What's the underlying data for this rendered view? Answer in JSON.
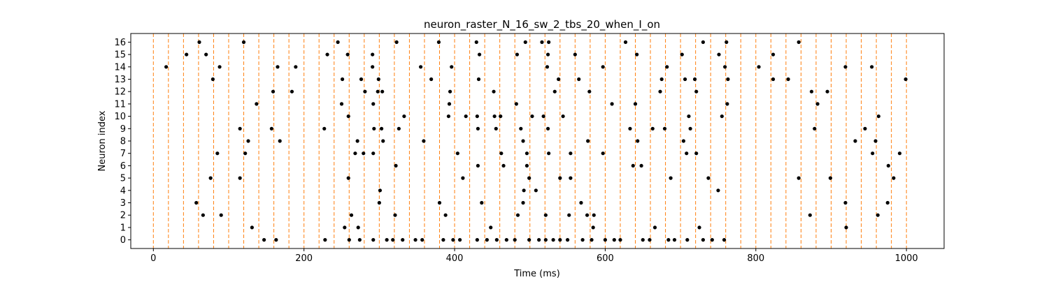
{
  "chart_data": {
    "type": "scatter",
    "title": "neuron_raster_N_16_sw_2_tbs_20_when_I_on",
    "xlabel": "Time (ms)",
    "ylabel": "Neuron index",
    "xlim": [
      -30,
      1050
    ],
    "ylim": [
      -0.7,
      16.7
    ],
    "xticks": [
      0,
      200,
      400,
      600,
      800,
      1000
    ],
    "yticks": [
      0,
      1,
      2,
      3,
      4,
      5,
      6,
      7,
      8,
      9,
      10,
      11,
      12,
      13,
      14,
      15,
      16
    ],
    "grid": false,
    "marker_color": "#000000",
    "vline_color": "#ff7f0e",
    "vlines": [
      0,
      20,
      40,
      60,
      80,
      100,
      120,
      140,
      160,
      180,
      200,
      220,
      240,
      260,
      280,
      300,
      320,
      340,
      360,
      380,
      400,
      420,
      440,
      460,
      480,
      500,
      520,
      540,
      560,
      580,
      600,
      620,
      640,
      660,
      680,
      700,
      720,
      740,
      760,
      780,
      800,
      820,
      840,
      860,
      880,
      900,
      920,
      940,
      960,
      980,
      1000
    ],
    "spikes": [
      [
        17,
        14
      ],
      [
        44,
        15
      ],
      [
        57,
        3
      ],
      [
        61,
        16
      ],
      [
        66,
        2
      ],
      [
        70,
        15
      ],
      [
        76,
        5
      ],
      [
        79,
        13
      ],
      [
        85,
        7
      ],
      [
        88,
        14
      ],
      [
        90,
        2
      ],
      [
        115,
        9
      ],
      [
        115,
        5
      ],
      [
        120,
        16
      ],
      [
        122,
        7
      ],
      [
        126,
        8
      ],
      [
        131,
        1
      ],
      [
        137,
        11
      ],
      [
        147,
        0
      ],
      [
        157,
        9
      ],
      [
        159,
        12
      ],
      [
        163,
        0
      ],
      [
        165,
        14
      ],
      [
        168,
        8
      ],
      [
        184,
        12
      ],
      [
        189,
        14
      ],
      [
        227,
        9
      ],
      [
        228,
        0
      ],
      [
        231,
        15
      ],
      [
        245,
        16
      ],
      [
        250,
        11
      ],
      [
        251,
        13
      ],
      [
        254,
        1
      ],
      [
        258,
        15
      ],
      [
        259,
        10
      ],
      [
        259,
        5
      ],
      [
        260,
        0
      ],
      [
        263,
        2
      ],
      [
        268,
        7
      ],
      [
        271,
        8
      ],
      [
        272,
        1
      ],
      [
        274,
        0
      ],
      [
        276,
        13
      ],
      [
        279,
        7
      ],
      [
        281,
        12
      ],
      [
        291,
        14
      ],
      [
        291,
        15
      ],
      [
        292,
        11
      ],
      [
        292,
        7
      ],
      [
        292,
        0
      ],
      [
        293,
        9
      ],
      [
        298,
        12
      ],
      [
        299,
        13
      ],
      [
        300,
        3
      ],
      [
        301,
        4
      ],
      [
        303,
        9
      ],
      [
        304,
        12
      ],
      [
        305,
        8
      ],
      [
        310,
        0
      ],
      [
        318,
        0
      ],
      [
        321,
        2
      ],
      [
        322,
        6
      ],
      [
        323,
        16
      ],
      [
        326,
        9
      ],
      [
        331,
        0
      ],
      [
        333,
        10
      ],
      [
        348,
        0
      ],
      [
        355,
        14
      ],
      [
        357,
        0
      ],
      [
        359,
        8
      ],
      [
        369,
        13
      ],
      [
        379,
        16
      ],
      [
        380,
        3
      ],
      [
        385,
        0
      ],
      [
        388,
        2
      ],
      [
        392,
        10
      ],
      [
        393,
        11
      ],
      [
        394,
        12
      ],
      [
        396,
        14
      ],
      [
        398,
        0
      ],
      [
        404,
        7
      ],
      [
        407,
        0
      ],
      [
        411,
        5
      ],
      [
        415,
        10
      ],
      [
        429,
        16
      ],
      [
        430,
        0
      ],
      [
        430,
        10
      ],
      [
        431,
        6
      ],
      [
        431,
        9
      ],
      [
        432,
        13
      ],
      [
        433,
        15
      ],
      [
        436,
        3
      ],
      [
        443,
        0
      ],
      [
        448,
        1
      ],
      [
        452,
        12
      ],
      [
        453,
        10
      ],
      [
        455,
        9
      ],
      [
        456,
        0
      ],
      [
        461,
        10
      ],
      [
        462,
        7
      ],
      [
        465,
        6
      ],
      [
        469,
        0
      ],
      [
        480,
        0
      ],
      [
        482,
        11
      ],
      [
        483,
        15
      ],
      [
        484,
        2
      ],
      [
        488,
        9
      ],
      [
        491,
        8
      ],
      [
        491,
        3
      ],
      [
        492,
        4
      ],
      [
        494,
        16
      ],
      [
        496,
        6
      ],
      [
        496,
        7
      ],
      [
        499,
        5
      ],
      [
        499,
        0
      ],
      [
        503,
        10
      ],
      [
        508,
        4
      ],
      [
        512,
        0
      ],
      [
        516,
        16
      ],
      [
        518,
        10
      ],
      [
        521,
        2
      ],
      [
        521,
        0
      ],
      [
        523,
        14
      ],
      [
        524,
        9
      ],
      [
        524,
        15
      ],
      [
        525,
        7
      ],
      [
        525,
        16
      ],
      [
        531,
        0
      ],
      [
        533,
        12
      ],
      [
        538,
        13
      ],
      [
        540,
        0
      ],
      [
        540,
        5
      ],
      [
        544,
        10
      ],
      [
        550,
        0
      ],
      [
        552,
        2
      ],
      [
        554,
        5
      ],
      [
        554,
        7
      ],
      [
        560,
        15
      ],
      [
        565,
        13
      ],
      [
        568,
        3
      ],
      [
        570,
        0
      ],
      [
        576,
        2
      ],
      [
        577,
        8
      ],
      [
        579,
        12
      ],
      [
        582,
        0
      ],
      [
        584,
        1
      ],
      [
        585,
        2
      ],
      [
        597,
        14
      ],
      [
        597,
        7
      ],
      [
        600,
        0
      ],
      [
        609,
        11
      ],
      [
        612,
        0
      ],
      [
        620,
        0
      ],
      [
        627,
        16
      ],
      [
        633,
        9
      ],
      [
        637,
        6
      ],
      [
        640,
        11
      ],
      [
        642,
        15
      ],
      [
        643,
        8
      ],
      [
        648,
        6
      ],
      [
        650,
        0
      ],
      [
        659,
        0
      ],
      [
        663,
        9
      ],
      [
        666,
        1
      ],
      [
        673,
        12
      ],
      [
        675,
        13
      ],
      [
        679,
        9
      ],
      [
        682,
        14
      ],
      [
        684,
        0
      ],
      [
        687,
        5
      ],
      [
        692,
        0
      ],
      [
        702,
        15
      ],
      [
        704,
        8
      ],
      [
        706,
        13
      ],
      [
        708,
        7
      ],
      [
        709,
        0
      ],
      [
        711,
        10
      ],
      [
        713,
        9
      ],
      [
        719,
        13
      ],
      [
        721,
        12
      ],
      [
        721,
        7
      ],
      [
        725,
        1
      ],
      [
        730,
        0
      ],
      [
        730,
        16
      ],
      [
        737,
        5
      ],
      [
        742,
        0
      ],
      [
        750,
        4
      ],
      [
        751,
        15
      ],
      [
        755,
        10
      ],
      [
        758,
        0
      ],
      [
        759,
        14
      ],
      [
        761,
        16
      ],
      [
        762,
        11
      ],
      [
        763,
        13
      ],
      [
        804,
        14
      ],
      [
        823,
        13
      ],
      [
        823,
        15
      ],
      [
        843,
        13
      ],
      [
        857,
        16
      ],
      [
        857,
        5
      ],
      [
        872,
        2
      ],
      [
        874,
        12
      ],
      [
        878,
        9
      ],
      [
        882,
        11
      ],
      [
        895,
        12
      ],
      [
        899,
        5
      ],
      [
        919,
        14
      ],
      [
        919,
        3
      ],
      [
        920,
        1
      ],
      [
        932,
        8
      ],
      [
        945,
        9
      ],
      [
        954,
        14
      ],
      [
        955,
        7
      ],
      [
        959,
        8
      ],
      [
        962,
        2
      ],
      [
        963,
        10
      ],
      [
        975,
        3
      ],
      [
        976,
        6
      ],
      [
        983,
        5
      ],
      [
        991,
        7
      ],
      [
        999,
        13
      ]
    ]
  }
}
